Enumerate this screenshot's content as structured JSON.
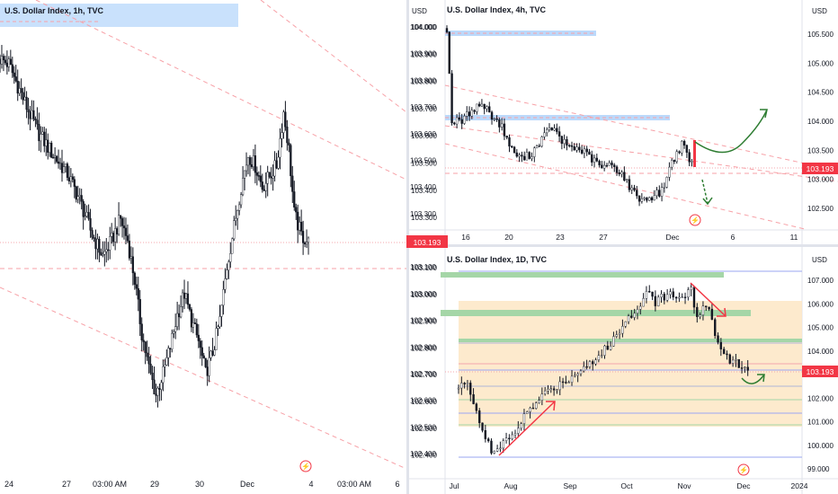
{
  "colors": {
    "up": "#089981",
    "down": "#f23645",
    "wick": "#131722",
    "bull_candle": "#ffffff",
    "bear_candle": "#131722",
    "trendline": "#f7a1a7",
    "zone_blue": "#bbd9fb",
    "zone_green": "#a5d6a7",
    "zone_orange": "#fde6c4",
    "arrow_red": "#f23645",
    "arrow_green": "#2e7d32",
    "price_tag": "#f23645"
  },
  "panels": [
    {
      "id": "1h",
      "title": "U.S. Dollar Index, 1h, TVC",
      "currency": "",
      "last_price": "103.193",
      "y_range": [
        102.35,
        104.07
      ],
      "y_ticks": [
        "104.000",
        "103.900",
        "103.800",
        "103.700",
        "103.600",
        "103.500",
        "103.400",
        "103.300",
        "103.200",
        "103.100",
        "103.000",
        "102.900",
        "102.800",
        "102.700",
        "102.600",
        "102.500",
        "102.400"
      ],
      "x_ticks": [
        "24",
        "27",
        "03:00 AM",
        "29",
        "30",
        "Dec",
        "4",
        "03:00 AM",
        "6"
      ]
    },
    {
      "id": "4h",
      "title": "U.S. Dollar Index, 4h, TVC",
      "currency": "USD",
      "last_price": "103.193",
      "y_range": [
        102.25,
        105.8
      ],
      "y_ticks": [
        "105.500",
        "105.000",
        "104.500",
        "104.000",
        "103.500",
        "103.000",
        "102.500"
      ],
      "x_ticks": [
        "16",
        "20",
        "23",
        "27",
        "Dec",
        "6",
        "11"
      ]
    },
    {
      "id": "1d",
      "title": "U.S. Dollar Index, 1D, TVC",
      "currency": "USD",
      "last_price": "103.193",
      "y_range": [
        98.8,
        107.6
      ],
      "y_ticks": [
        "107.000",
        "106.000",
        "105.000",
        "104.000",
        "103.000",
        "102.000",
        "101.000",
        "100.000",
        "99.000"
      ],
      "x_ticks": [
        "Jul",
        "Aug",
        "Sep",
        "Oct",
        "Nov",
        "Dec",
        "2024"
      ]
    }
  ],
  "chart_data": [
    {
      "type": "candlestick",
      "title": "U.S. Dollar Index, 1h, TVC",
      "interval": "1h",
      "last_price": 103.193,
      "ylim": [
        102.35,
        104.07
      ],
      "path": [
        [
          0,
          103.88
        ],
        [
          5,
          103.86
        ],
        [
          10,
          103.78
        ],
        [
          15,
          103.7
        ],
        [
          22,
          103.6
        ],
        [
          30,
          103.52
        ],
        [
          38,
          103.45
        ],
        [
          45,
          103.35
        ],
        [
          52,
          103.22
        ],
        [
          58,
          103.14
        ],
        [
          63,
          103.2
        ],
        [
          68,
          103.28
        ],
        [
          72,
          103.2
        ],
        [
          76,
          103.05
        ],
        [
          80,
          102.85
        ],
        [
          84,
          102.72
        ],
        [
          88,
          102.62
        ],
        [
          92,
          102.7
        ],
        [
          96,
          102.8
        ],
        [
          100,
          102.92
        ],
        [
          104,
          103.0
        ],
        [
          108,
          102.9
        ],
        [
          112,
          102.82
        ],
        [
          116,
          102.7
        ],
        [
          120,
          102.78
        ],
        [
          124,
          102.9
        ],
        [
          128,
          103.1
        ],
        [
          132,
          103.25
        ],
        [
          136,
          103.4
        ],
        [
          140,
          103.52
        ],
        [
          144,
          103.48
        ],
        [
          148,
          103.4
        ],
        [
          152,
          103.44
        ],
        [
          156,
          103.48
        ],
        [
          160,
          103.68
        ],
        [
          163,
          103.54
        ],
        [
          166,
          103.3
        ],
        [
          170,
          103.22
        ],
        [
          174,
          103.19
        ]
      ],
      "grid": false
    },
    {
      "type": "candlestick",
      "title": "U.S. Dollar Index, 4h, TVC",
      "interval": "4h",
      "last_price": 103.193,
      "ylim": [
        102.25,
        105.8
      ],
      "path": [
        [
          0,
          105.6
        ],
        [
          2,
          104.0
        ],
        [
          6,
          104.0
        ],
        [
          10,
          104.2
        ],
        [
          14,
          104.3
        ],
        [
          18,
          104.1
        ],
        [
          22,
          103.9
        ],
        [
          26,
          103.5
        ],
        [
          30,
          103.35
        ],
        [
          34,
          103.45
        ],
        [
          38,
          103.7
        ],
        [
          42,
          103.9
        ],
        [
          46,
          103.65
        ],
        [
          50,
          103.55
        ],
        [
          54,
          103.5
        ],
        [
          58,
          103.35
        ],
        [
          62,
          103.2
        ],
        [
          66,
          103.25
        ],
        [
          70,
          103.1
        ],
        [
          74,
          102.8
        ],
        [
          78,
          102.65
        ],
        [
          82,
          102.7
        ],
        [
          86,
          102.8
        ],
        [
          90,
          103.3
        ],
        [
          94,
          103.6
        ],
        [
          97,
          103.35
        ],
        [
          100,
          103.19
        ]
      ],
      "grid": false
    },
    {
      "type": "candlestick",
      "title": "U.S. Dollar Index, 1D, TVC",
      "interval": "1D",
      "last_price": 103.193,
      "ylim": [
        98.8,
        107.6
      ],
      "path": [
        [
          0,
          102.4
        ],
        [
          3,
          102.7
        ],
        [
          6,
          101.5
        ],
        [
          9,
          100.3
        ],
        [
          11,
          99.7
        ],
        [
          14,
          99.9
        ],
        [
          18,
          100.4
        ],
        [
          22,
          101.2
        ],
        [
          26,
          101.8
        ],
        [
          30,
          102.3
        ],
        [
          34,
          102.6
        ],
        [
          38,
          102.9
        ],
        [
          42,
          103.4
        ],
        [
          46,
          103.6
        ],
        [
          50,
          104.2
        ],
        [
          54,
          104.8
        ],
        [
          58,
          105.6
        ],
        [
          62,
          106.2
        ],
        [
          64,
          106.7
        ],
        [
          66,
          106.1
        ],
        [
          70,
          106.4
        ],
        [
          74,
          106.3
        ],
        [
          78,
          106.6
        ],
        [
          80,
          105.4
        ],
        [
          83,
          106.0
        ],
        [
          86,
          104.8
        ],
        [
          89,
          103.8
        ],
        [
          92,
          103.6
        ],
        [
          95,
          103.3
        ],
        [
          98,
          103.19
        ]
      ],
      "grid": false
    }
  ]
}
